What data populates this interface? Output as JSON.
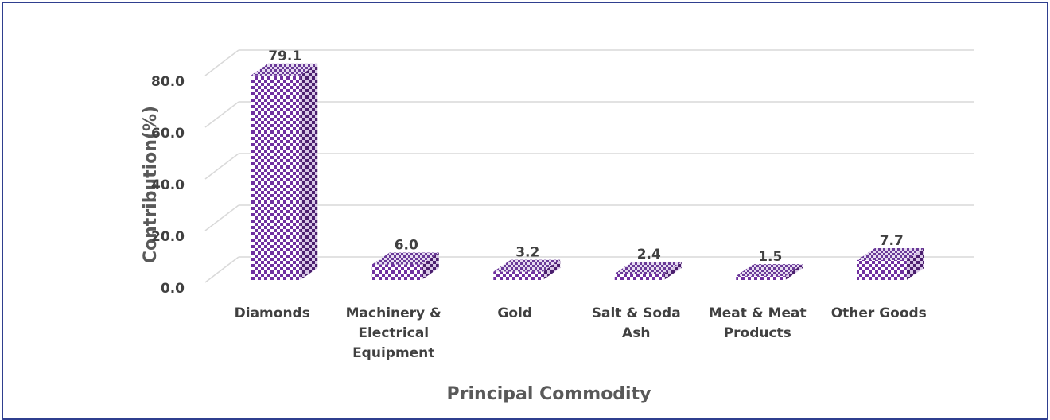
{
  "chart_data": {
    "type": "bar3d",
    "categories": [
      "Diamonds",
      "Machinery & Electrical Equipment",
      "Gold",
      "Salt & Soda Ash",
      "Meat & Meat Products",
      "Other Goods"
    ],
    "values": [
      79.1,
      6.0,
      3.2,
      2.4,
      1.5,
      7.7
    ],
    "value_labels": [
      "79.1",
      "6.0",
      "3.2",
      "2.4",
      "1.5",
      "7.7"
    ],
    "color": "#7030a0",
    "xlabel": "Principal Commodity",
    "ylabel": "Contribution(%)",
    "ylim": [
      0,
      80
    ],
    "yticks": [
      {
        "value": 0,
        "label": "0.0"
      },
      {
        "value": 20,
        "label": "20.0"
      },
      {
        "value": 40,
        "label": "40.0"
      },
      {
        "value": 60,
        "label": "60.0"
      },
      {
        "value": 80,
        "label": "80.0"
      }
    ],
    "grid": true
  }
}
